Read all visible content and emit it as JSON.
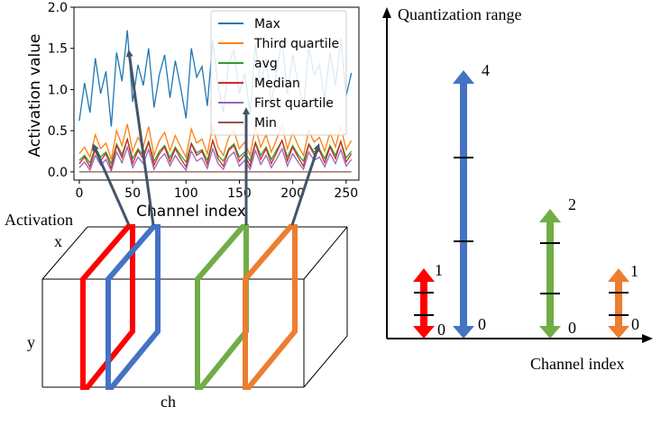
{
  "colors": {
    "max": "#1f77b4",
    "third_quartile": "#ff7f0e",
    "avg": "#2ca02c",
    "median": "#d62728",
    "first_quartile": "#9467bd",
    "min": "#8c564b",
    "slice_red": "#ff0000",
    "slice_blue": "#4472c4",
    "slice_green": "#70ad47",
    "slice_orange": "#ed7d31",
    "pointer": "#44546a"
  },
  "chart_data": {
    "type": "line",
    "title": "",
    "xlabel": "Channel index",
    "ylabel": "Activation value",
    "xlim": [
      -5,
      262
    ],
    "ylim": [
      -0.1,
      2.0
    ],
    "xticks": [
      0,
      50,
      100,
      150,
      200,
      250
    ],
    "yticks": [
      0.0,
      0.5,
      1.0,
      1.5,
      2.0
    ],
    "ytick_labels": [
      "0.0",
      "0.5",
      "1.0",
      "1.5",
      "2.0"
    ],
    "x": {
      "start": 0,
      "end": 255,
      "step": 5
    },
    "legend_position": "top-right",
    "series": [
      {
        "key": "max",
        "name": "Max",
        "values": [
          0.62,
          1.08,
          0.72,
          1.38,
          0.95,
          1.22,
          0.55,
          1.45,
          1.1,
          1.72,
          0.85,
          1.3,
          1.05,
          1.5,
          0.78,
          1.18,
          1.42,
          0.9,
          1.35,
          1.02,
          0.65,
          1.5,
          1.15,
          1.28,
          0.8,
          1.6,
          1.05,
          0.72,
          1.32,
          1.48,
          0.95,
          1.2,
          0.7,
          1.55,
          1.05,
          1.38,
          0.82,
          1.25,
          1.6,
          0.95,
          1.42,
          1.08,
          0.75,
          1.52,
          1.18,
          1.3,
          0.88,
          1.45,
          1.05,
          1.62,
          0.92,
          1.2
        ]
      },
      {
        "key": "third_quartile",
        "name": "Third quartile",
        "values": [
          0.22,
          0.3,
          0.18,
          0.45,
          0.28,
          0.35,
          0.15,
          0.5,
          0.32,
          0.58,
          0.25,
          0.42,
          0.3,
          0.55,
          0.2,
          0.38,
          0.48,
          0.26,
          0.44,
          0.3,
          0.18,
          0.52,
          0.35,
          0.4,
          0.22,
          0.56,
          0.3,
          0.2,
          0.42,
          0.5,
          0.28,
          0.36,
          0.2,
          0.54,
          0.3,
          0.45,
          0.24,
          0.4,
          0.56,
          0.28,
          0.48,
          0.32,
          0.2,
          0.5,
          0.36,
          0.42,
          0.25,
          0.48,
          0.3,
          0.55,
          0.27,
          0.38
        ]
      },
      {
        "key": "avg",
        "name": "avg",
        "values": [
          0.14,
          0.2,
          0.11,
          0.3,
          0.18,
          0.24,
          0.1,
          0.34,
          0.21,
          0.4,
          0.16,
          0.28,
          0.2,
          0.37,
          0.13,
          0.25,
          0.32,
          0.17,
          0.3,
          0.2,
          0.12,
          0.35,
          0.23,
          0.27,
          0.14,
          0.38,
          0.2,
          0.13,
          0.28,
          0.34,
          0.18,
          0.24,
          0.13,
          0.36,
          0.2,
          0.3,
          0.15,
          0.27,
          0.38,
          0.18,
          0.32,
          0.21,
          0.13,
          0.34,
          0.24,
          0.28,
          0.16,
          0.32,
          0.2,
          0.37,
          0.17,
          0.25
        ]
      },
      {
        "key": "median",
        "name": "Median",
        "values": [
          0.1,
          0.18,
          0.06,
          0.28,
          0.14,
          0.22,
          0.04,
          0.32,
          0.17,
          0.4,
          0.1,
          0.26,
          0.16,
          0.36,
          0.08,
          0.22,
          0.3,
          0.12,
          0.28,
          0.16,
          0.06,
          0.34,
          0.2,
          0.25,
          0.09,
          0.38,
          0.16,
          0.07,
          0.26,
          0.32,
          0.13,
          0.21,
          0.07,
          0.35,
          0.15,
          0.28,
          0.1,
          0.24,
          0.38,
          0.13,
          0.3,
          0.18,
          0.07,
          0.33,
          0.21,
          0.26,
          0.11,
          0.3,
          0.16,
          0.37,
          0.12,
          0.22
        ]
      },
      {
        "key": "first_quartile",
        "name": "First quartile",
        "values": [
          0.05,
          0.12,
          0.02,
          0.2,
          0.08,
          0.15,
          0.01,
          0.24,
          0.11,
          0.3,
          0.05,
          0.18,
          0.1,
          0.27,
          0.03,
          0.15,
          0.22,
          0.07,
          0.2,
          0.1,
          0.02,
          0.25,
          0.13,
          0.17,
          0.04,
          0.28,
          0.1,
          0.03,
          0.18,
          0.24,
          0.07,
          0.14,
          0.03,
          0.26,
          0.09,
          0.2,
          0.05,
          0.16,
          0.28,
          0.07,
          0.22,
          0.12,
          0.03,
          0.24,
          0.14,
          0.18,
          0.06,
          0.22,
          0.1,
          0.27,
          0.07,
          0.15
        ]
      },
      {
        "key": "min",
        "name": "Min",
        "values": [
          0.0,
          0.0,
          0.0,
          0.0,
          0.0,
          0.0,
          0.0,
          0.0,
          0.0,
          0.0,
          0.0,
          0.0,
          0.0,
          0.0,
          0.0,
          0.0,
          0.0,
          0.0,
          0.0,
          0.0,
          0.0,
          0.0,
          0.0,
          0.0,
          0.0,
          0.0,
          0.0,
          0.0,
          0.0,
          0.0,
          0.0,
          0.0,
          0.0,
          0.0,
          0.0,
          0.0,
          0.0,
          0.0,
          0.0,
          0.0,
          0.0,
          0.0,
          0.0,
          0.0,
          0.0,
          0.0,
          0.0,
          0.0,
          0.0,
          0.0,
          0.0,
          0.0
        ]
      }
    ]
  },
  "tensor": {
    "activation_label": "Activation",
    "x_label": "x",
    "y_label": "y",
    "ch_label": "ch"
  },
  "range_chart": {
    "ylabel": "Quantization range",
    "xlabel": "Channel index",
    "bars": [
      {
        "key": "red",
        "color_key": "slice_red",
        "top_value": "1",
        "bottom_value": "0"
      },
      {
        "key": "blue",
        "color_key": "slice_blue",
        "top_value": "4",
        "bottom_value": "0"
      },
      {
        "key": "green",
        "color_key": "slice_green",
        "top_value": "2",
        "bottom_value": "0"
      },
      {
        "key": "orange",
        "color_key": "slice_orange",
        "top_value": "1",
        "bottom_value": "0"
      }
    ]
  }
}
